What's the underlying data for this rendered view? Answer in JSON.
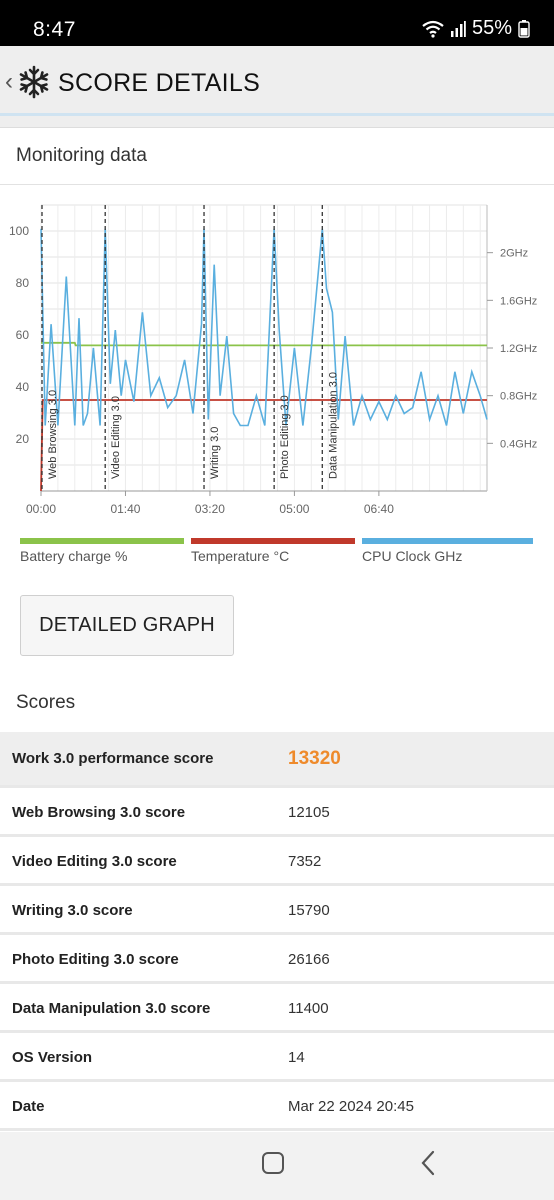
{
  "status_bar": {
    "time": "8:47",
    "battery": "55%",
    "icons": [
      "wifi-icon",
      "signal-icon",
      "battery-icon"
    ]
  },
  "app_bar": {
    "title": "SCORE DETAILS",
    "icons": [
      "back-chevron-icon",
      "snowflake-logo-icon"
    ]
  },
  "monitoring": {
    "title": "Monitoring data",
    "detailed_graph_label": "DETAILED GRAPH"
  },
  "chart_data": {
    "type": "line",
    "xlabel": "",
    "x_ticks": [
      "00:00",
      "01:40",
      "03:20",
      "05:00",
      "06:40"
    ],
    "x_range_seconds": [
      0,
      528
    ],
    "y_left": {
      "label": "",
      "range": [
        0,
        110
      ],
      "ticks": [
        20,
        40,
        60,
        80,
        100
      ]
    },
    "y_right": {
      "label": "",
      "range": [
        0,
        2.4
      ],
      "ticks": [
        "0.4GHz",
        "0.8GHz",
        "1.2GHz",
        "1.6GHz",
        "2GHz"
      ]
    },
    "grid": true,
    "phases": [
      {
        "label": "Web Browsing 3.0",
        "start_s": 0
      },
      {
        "label": "Video Editing 3.0",
        "start_s": 76
      },
      {
        "label": "Writing 3.0",
        "start_s": 193
      },
      {
        "label": "Photo Editing 3.0",
        "start_s": 276
      },
      {
        "label": "Data Manipulation 3.0",
        "start_s": 333
      }
    ],
    "series": [
      {
        "name": "Battery charge %",
        "color": "#8bc34a",
        "axis": "left",
        "x": [
          0,
          40,
          41,
          528
        ],
        "y": [
          57,
          57,
          56,
          56
        ]
      },
      {
        "name": "Temperature °C",
        "color": "#c0392b",
        "axis": "left",
        "x": [
          0,
          2,
          528
        ],
        "y": [
          0,
          35,
          35
        ]
      },
      {
        "name": "CPU Clock GHz",
        "color": "#5aafdf",
        "axis": "right",
        "x": [
          0,
          5,
          12,
          20,
          30,
          40,
          45,
          50,
          55,
          62,
          70,
          76,
          82,
          88,
          95,
          100,
          110,
          120,
          130,
          140,
          150,
          160,
          170,
          180,
          190,
          193,
          198,
          205,
          212,
          220,
          228,
          236,
          245,
          255,
          265,
          276,
          282,
          290,
          300,
          310,
          320,
          333,
          338,
          345,
          352,
          360,
          370,
          380,
          390,
          400,
          410,
          420,
          430,
          440,
          450,
          460,
          470,
          480,
          490,
          500,
          510,
          520,
          528
        ],
        "y": [
          2.2,
          0.55,
          1.4,
          0.55,
          1.8,
          0.55,
          1.45,
          0.55,
          0.65,
          1.2,
          0.55,
          2.2,
          0.9,
          1.35,
          0.8,
          1.1,
          0.75,
          1.5,
          0.8,
          0.95,
          0.7,
          0.8,
          1.1,
          0.65,
          1.4,
          2.2,
          0.6,
          1.9,
          0.8,
          1.3,
          0.65,
          0.55,
          0.55,
          0.8,
          0.55,
          2.2,
          1.35,
          0.55,
          1.2,
          0.55,
          1.2,
          2.2,
          1.7,
          1.5,
          0.6,
          1.3,
          0.55,
          0.8,
          0.6,
          0.75,
          0.6,
          0.8,
          0.65,
          0.7,
          1.0,
          0.6,
          0.8,
          0.55,
          1.0,
          0.65,
          1.0,
          0.8,
          0.6
        ]
      }
    ]
  },
  "scores_section": {
    "title": "Scores",
    "rows": [
      {
        "name": "Work 3.0 performance score",
        "value": "13320"
      },
      {
        "name": "Web Browsing 3.0 score",
        "value": "12105"
      },
      {
        "name": "Video Editing 3.0 score",
        "value": "7352"
      },
      {
        "name": "Writing 3.0 score",
        "value": "15790"
      },
      {
        "name": "Photo Editing 3.0 score",
        "value": "26166"
      },
      {
        "name": "Data Manipulation 3.0 score",
        "value": "11400"
      },
      {
        "name": "OS Version",
        "value": "14"
      },
      {
        "name": "Date",
        "value": "Mar 22 2024 20:45"
      }
    ]
  },
  "colors": {
    "accent_score": "#ee8a2b",
    "battery": "#8bc34a",
    "temperature": "#c0392b",
    "cpu": "#5aafdf"
  }
}
